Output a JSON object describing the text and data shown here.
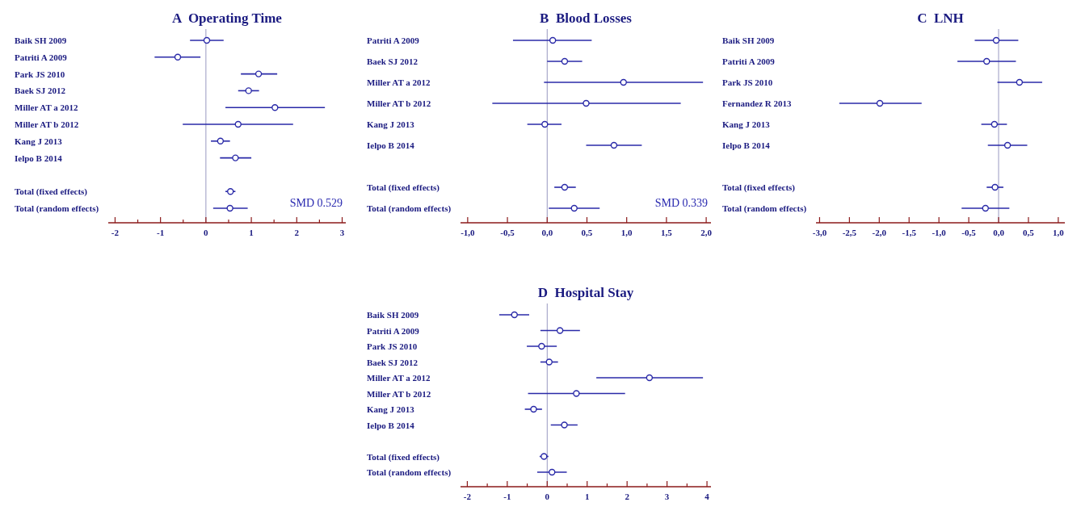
{
  "chart_data": [
    {
      "type": "scatter",
      "orientation": "horizontal",
      "title": "A  Operating Time",
      "marker": "circle",
      "color": "#2a2aa8",
      "categories": [
        "Baik SH 2009",
        "Patriti A 2009",
        "Park JS 2010",
        "Baek SJ 2012",
        "Miller AT a 2012",
        "Miller AT b 2012",
        "Kang J 2013",
        "Ielpo B 2014",
        null,
        "Total (fixed effects)",
        "Total (random effects)"
      ],
      "values": [
        0.02,
        -0.62,
        1.16,
        0.94,
        1.52,
        0.71,
        0.32,
        0.65,
        null,
        0.54,
        0.53
      ],
      "errors": [
        [
          -0.35,
          0.39
        ],
        [
          -1.13,
          -0.12
        ],
        [
          0.77,
          1.57
        ],
        [
          0.71,
          1.17
        ],
        [
          0.43,
          2.62
        ],
        [
          -0.51,
          1.92
        ],
        [
          0.11,
          0.53
        ],
        [
          0.31,
          1.0
        ],
        null,
        [
          0.43,
          0.65
        ],
        [
          0.16,
          0.92
        ]
      ],
      "xlim": [
        -2.15,
        3.08
      ],
      "xticks": [
        -2,
        {
          "value": -1.5,
          "label": null
        },
        -1,
        {
          "value": -0.5,
          "label": null
        },
        0,
        {
          "value": 0.5,
          "label": null
        },
        1,
        {
          "value": 1.5,
          "label": null
        },
        2,
        {
          "value": 2.5,
          "label": null
        },
        3
      ],
      "ref_lines": [
        {
          "axis": "x",
          "value": 0,
          "color": "#9898c0"
        }
      ],
      "annotations": [
        "SMD 0.529"
      ]
    },
    {
      "type": "scatter",
      "orientation": "horizontal",
      "title": "B  Blood Losses",
      "marker": "circle",
      "color": "#2a2aa8",
      "categories": [
        "Patriti A 2009",
        "Baek SJ 2012",
        "Miller AT a 2012",
        "Miller AT b 2012",
        "Kang J 2013",
        "Ielpo B 2014",
        null,
        "Total (fixed effects)",
        "Total (random effects)"
      ],
      "values": [
        0.07,
        0.22,
        0.96,
        0.49,
        -0.03,
        0.84,
        null,
        0.22,
        0.34
      ],
      "errors": [
        [
          -0.43,
          0.56
        ],
        [
          0.0,
          0.44
        ],
        [
          -0.04,
          1.96
        ],
        [
          -0.69,
          1.68
        ],
        [
          -0.25,
          0.18
        ],
        [
          0.49,
          1.19
        ],
        null,
        [
          0.09,
          0.36
        ],
        [
          0.02,
          0.66
        ]
      ],
      "xlim": [
        -1.09,
        2.06
      ],
      "xticks": [
        {
          "value": -1,
          "label": "-1,0"
        },
        {
          "value": -0.5,
          "label": "-0,5"
        },
        {
          "value": 0,
          "label": "0,0"
        },
        {
          "value": 0.5,
          "label": "0,5"
        },
        {
          "value": 1,
          "label": "1,0"
        },
        {
          "value": 1.5,
          "label": "1,5"
        },
        {
          "value": 2,
          "label": "2,0"
        }
      ],
      "ref_lines": [
        {
          "axis": "x",
          "value": 0,
          "color": "#9898c0"
        }
      ],
      "annotations": [
        "SMD 0.339"
      ]
    },
    {
      "type": "scatter",
      "orientation": "horizontal",
      "title": "C  LNH",
      "marker": "circle",
      "color": "#2a2aa8",
      "categories": [
        "Baik SH 2009",
        "Patriti A 2009",
        "Park JS 2010",
        "Fernandez R 2013",
        "Kang J 2013",
        "Ielpo B 2014",
        null,
        "Total (fixed effects)",
        "Total (random effects)"
      ],
      "values": [
        -0.04,
        -0.2,
        0.35,
        -1.99,
        -0.07,
        0.15,
        null,
        -0.06,
        -0.22
      ],
      "errors": [
        [
          -0.4,
          0.33
        ],
        [
          -0.69,
          0.29
        ],
        [
          -0.02,
          0.73
        ],
        [
          -2.67,
          -1.29
        ],
        [
          -0.29,
          0.14
        ],
        [
          -0.18,
          0.48
        ],
        null,
        [
          -0.2,
          0.08
        ],
        [
          -0.62,
          0.18
        ]
      ],
      "xlim": [
        -3.06,
        1.11
      ],
      "xticks": [
        {
          "value": -3,
          "label": "-3,0"
        },
        {
          "value": -2.5,
          "label": "-2,5"
        },
        {
          "value": -2,
          "label": "-2,0"
        },
        {
          "value": -1.5,
          "label": "-1,5"
        },
        {
          "value": -1,
          "label": "-1,0"
        },
        {
          "value": -0.5,
          "label": "-0,5"
        },
        {
          "value": 0,
          "label": "0,0"
        },
        {
          "value": 0.5,
          "label": "0,5"
        },
        {
          "value": 1,
          "label": "1,0"
        }
      ],
      "ref_lines": [
        {
          "axis": "x",
          "value": 0,
          "color": "#9898c0"
        }
      ]
    },
    {
      "type": "scatter",
      "orientation": "horizontal",
      "title": "D  Hospital Stay",
      "marker": "circle",
      "color": "#2a2aa8",
      "categories": [
        "Baik SH 2009",
        "Patriti A 2009",
        "Park JS 2010",
        "Baek SJ 2012",
        "Miller AT a 2012",
        "Miller AT b 2012",
        "Kang J 2013",
        "Ielpo B 2014",
        null,
        "Total (fixed effects)",
        "Total (random effects)"
      ],
      "values": [
        -0.82,
        0.32,
        -0.14,
        0.05,
        2.56,
        0.73,
        -0.34,
        0.43,
        null,
        -0.08,
        0.12
      ],
      "errors": [
        [
          -1.2,
          -0.45
        ],
        [
          -0.17,
          0.82
        ],
        [
          -0.51,
          0.24
        ],
        [
          -0.17,
          0.27
        ],
        [
          1.23,
          3.9
        ],
        [
          -0.48,
          1.95
        ],
        [
          -0.56,
          -0.13
        ],
        [
          0.09,
          0.76
        ],
        null,
        [
          -0.19,
          0.03
        ],
        [
          -0.25,
          0.49
        ]
      ],
      "xlim": [
        -2.17,
        4.1
      ],
      "xticks": [
        -2,
        {
          "value": -1.5,
          "label": null
        },
        -1,
        {
          "value": -0.5,
          "label": null
        },
        0,
        {
          "value": 0.5,
          "label": null
        },
        1,
        {
          "value": 1.5,
          "label": null
        },
        2,
        {
          "value": 2.5,
          "label": null
        },
        3,
        {
          "value": 3.5,
          "label": null
        },
        4
      ],
      "ref_lines": [
        {
          "axis": "x",
          "value": 0,
          "color": "#9898c0"
        }
      ]
    }
  ]
}
